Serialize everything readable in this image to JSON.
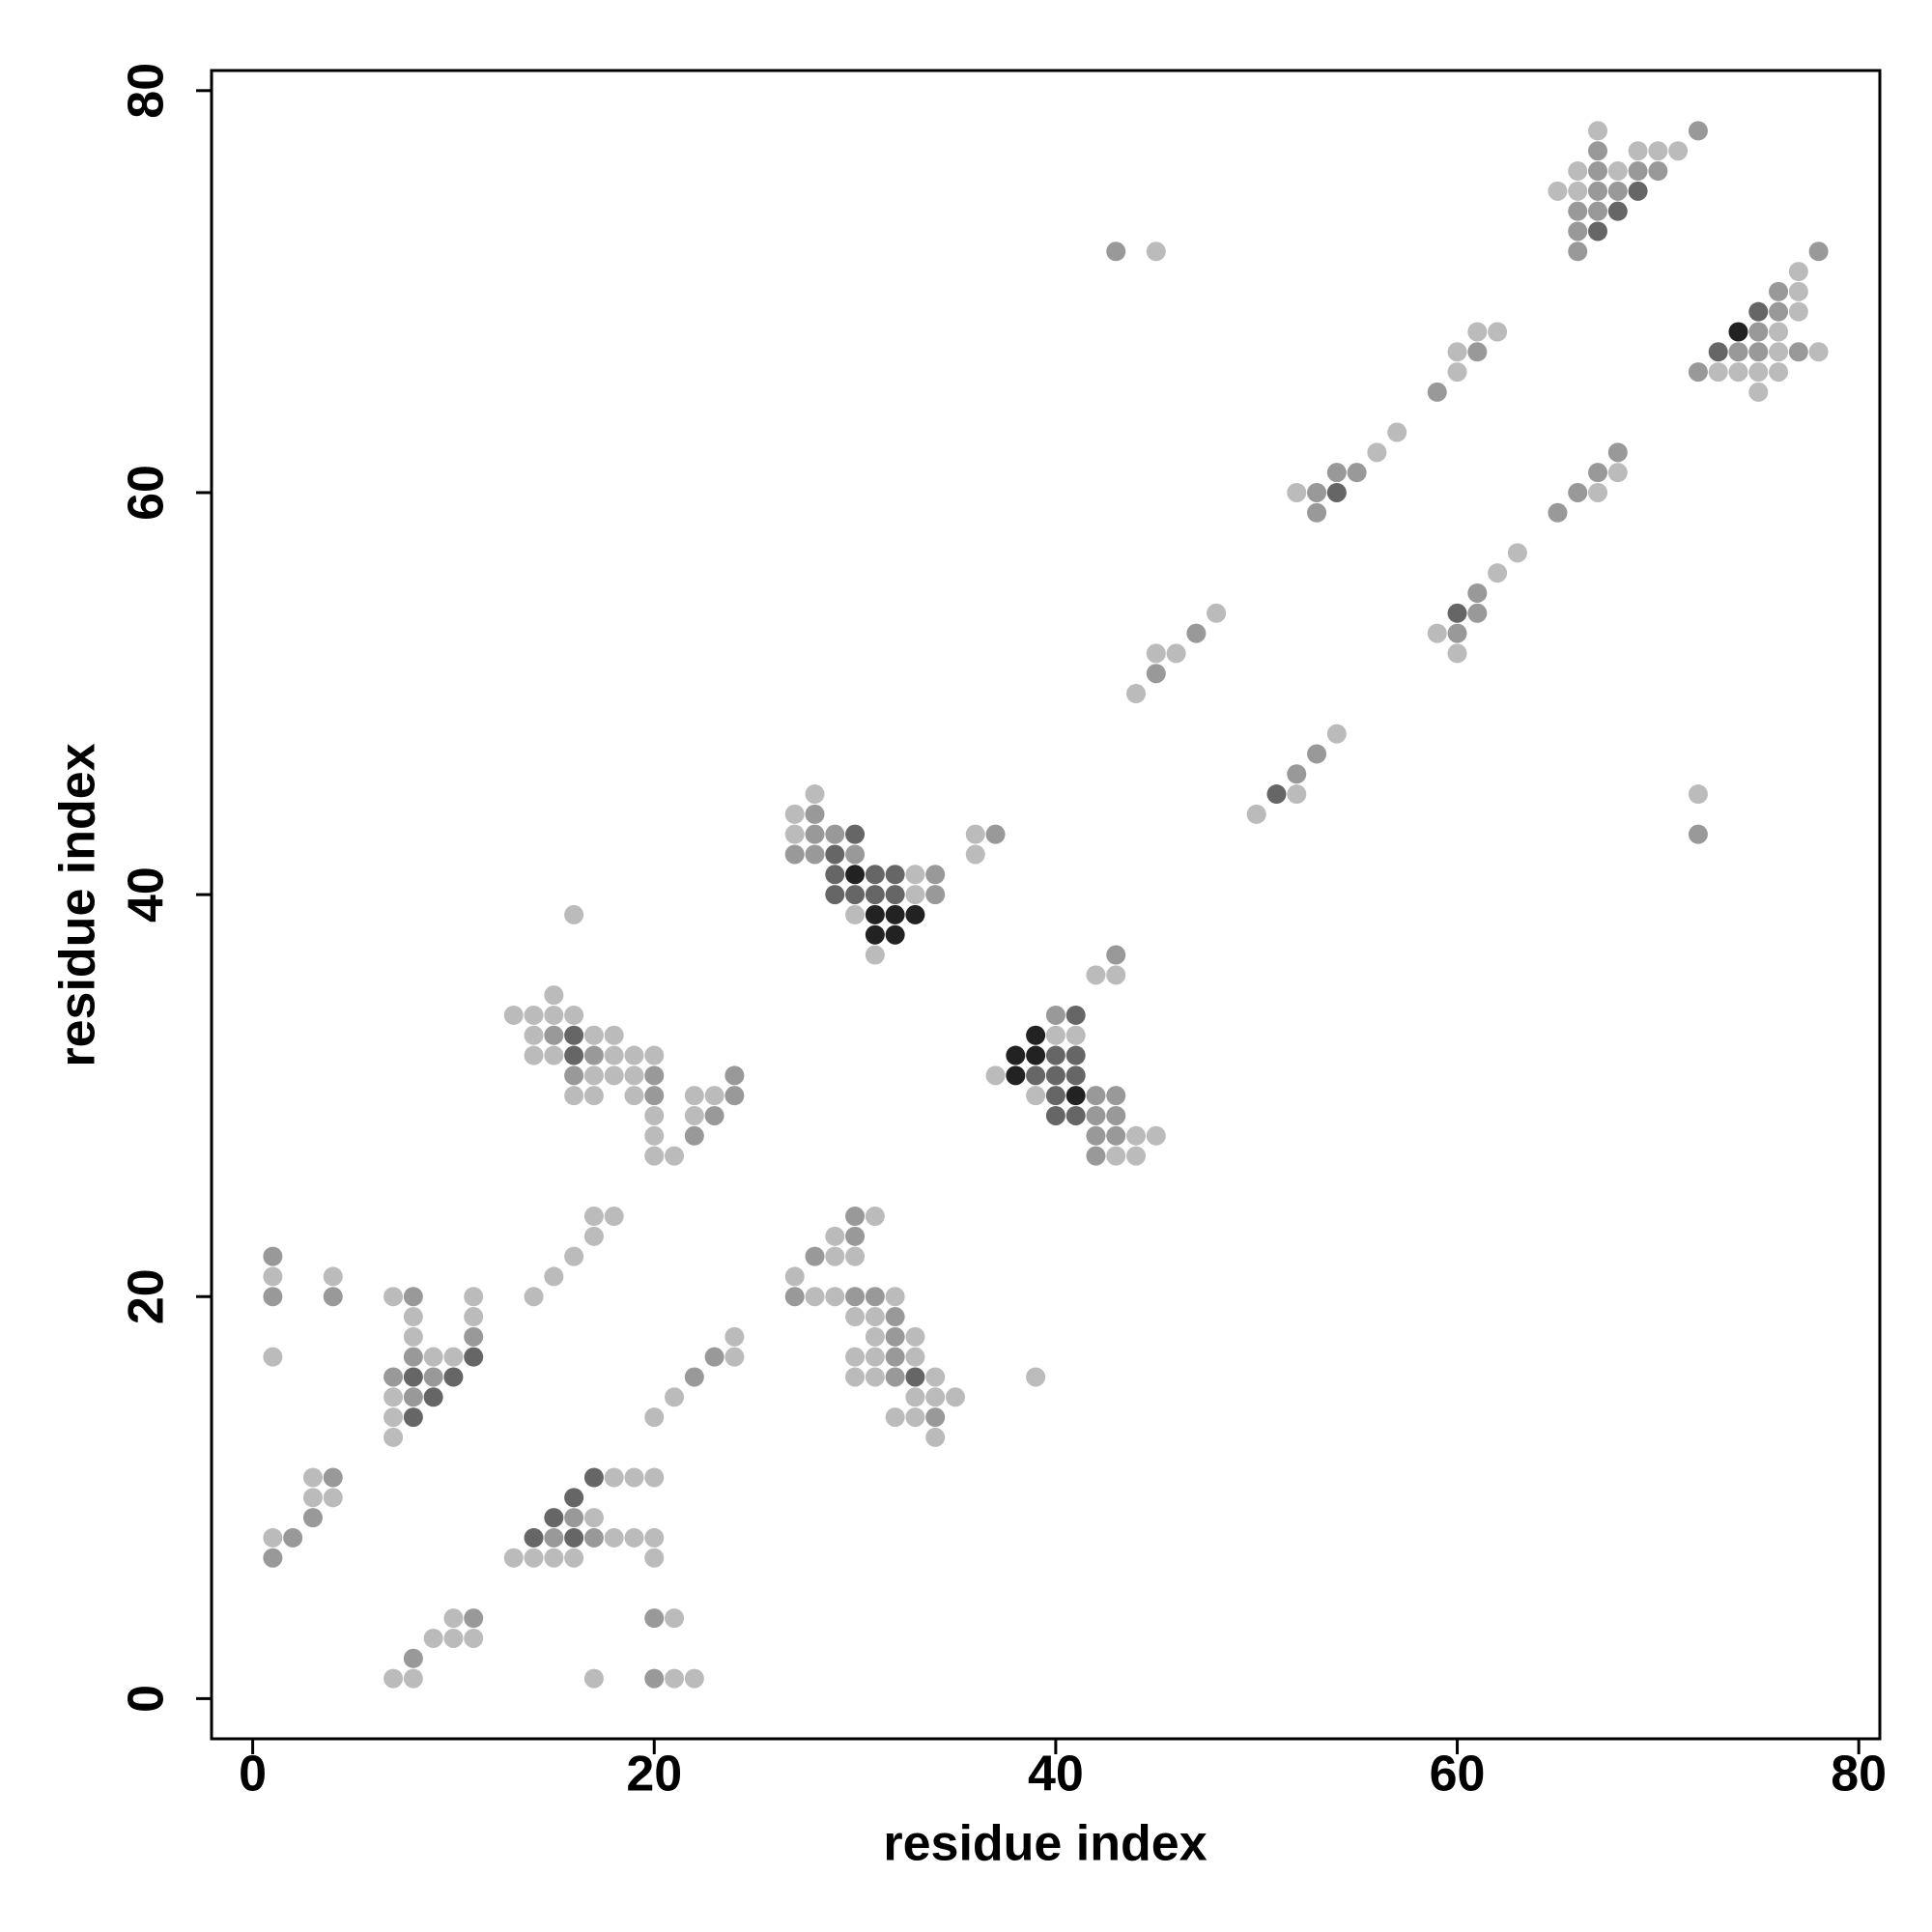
{
  "chart_data": {
    "type": "scatter",
    "xlabel": "residue index",
    "ylabel": "residue index",
    "xlim": [
      -2.05,
      81.05
    ],
    "ylim": [
      -2.0,
      81.0
    ],
    "xticks": [
      0,
      20,
      40,
      60,
      80
    ],
    "yticks": [
      0,
      20,
      40,
      60,
      80
    ],
    "series": [
      {
        "color": "#bbbbbb",
        "x": [
          7,
          8,
          17,
          21,
          22,
          9,
          10,
          11,
          10,
          21,
          13,
          14,
          15,
          16,
          20,
          1,
          18,
          19,
          20,
          17,
          3,
          4,
          3,
          18,
          19,
          20,
          7,
          34,
          7,
          20,
          32,
          33,
          7,
          21,
          33,
          34,
          35,
          30,
          31,
          34,
          39,
          1,
          9,
          10,
          24,
          30,
          31,
          33,
          8,
          24,
          31,
          33,
          8,
          11,
          30,
          31,
          7,
          11,
          14,
          28,
          29,
          32,
          1,
          4,
          15,
          27,
          16,
          29,
          30,
          17,
          29,
          17,
          18,
          31,
          20,
          21,
          43,
          44,
          20,
          44,
          45,
          20,
          22,
          16,
          17,
          19,
          22,
          23,
          39,
          17,
          18,
          19,
          37,
          14,
          15,
          18,
          19,
          20,
          14,
          17,
          18,
          40,
          41,
          13,
          14,
          15,
          16,
          15,
          42,
          43,
          31,
          16,
          30,
          33,
          33,
          36,
          27,
          36,
          27,
          50,
          28,
          52,
          72,
          54,
          44,
          45,
          46,
          60,
          59,
          48,
          62,
          63,
          52,
          67,
          68,
          56,
          57,
          75,
          60,
          73,
          74,
          75,
          76,
          60,
          76,
          78,
          61,
          62,
          76,
          77,
          77,
          77,
          45,
          65,
          66,
          66,
          68,
          69,
          70,
          71,
          67
        ],
        "y": [
          1,
          1,
          1,
          1,
          1,
          3,
          3,
          3,
          4,
          4,
          7,
          7,
          7,
          7,
          7,
          8,
          8,
          8,
          8,
          9,
          10,
          10,
          11,
          11,
          11,
          11,
          13,
          13,
          14,
          14,
          14,
          14,
          15,
          15,
          15,
          15,
          15,
          16,
          16,
          16,
          16,
          17,
          17,
          17,
          17,
          17,
          17,
          17,
          18,
          18,
          18,
          18,
          19,
          19,
          19,
          19,
          20,
          20,
          20,
          20,
          20,
          20,
          21,
          21,
          21,
          21,
          22,
          22,
          22,
          23,
          23,
          24,
          24,
          24,
          27,
          27,
          27,
          27,
          28,
          28,
          28,
          29,
          29,
          30,
          30,
          30,
          30,
          30,
          30,
          31,
          31,
          31,
          31,
          32,
          32,
          32,
          32,
          32,
          33,
          33,
          33,
          33,
          33,
          34,
          34,
          34,
          34,
          35,
          36,
          36,
          37,
          39,
          39,
          40,
          41,
          42,
          43,
          43,
          44,
          44,
          45,
          45,
          45,
          48,
          50,
          52,
          52,
          52,
          53,
          54,
          56,
          57,
          60,
          60,
          61,
          62,
          63,
          65,
          66,
          66,
          66,
          66,
          66,
          67,
          67,
          67,
          68,
          68,
          68,
          69,
          70,
          71,
          72,
          75,
          75,
          76,
          76,
          77,
          77,
          77,
          78
        ]
      },
      {
        "color": "#999999",
        "x": [
          20,
          8,
          11,
          20,
          1,
          2,
          15,
          17,
          3,
          16,
          4,
          34,
          8,
          7,
          9,
          22,
          32,
          8,
          23,
          32,
          11,
          32,
          32,
          1,
          4,
          8,
          27,
          30,
          31,
          1,
          28,
          30,
          30,
          42,
          22,
          42,
          43,
          23,
          42,
          43,
          20,
          24,
          42,
          43,
          16,
          20,
          24,
          17,
          15,
          40,
          43,
          34,
          34,
          27,
          28,
          30,
          28,
          29,
          37,
          72,
          28,
          52,
          53,
          45,
          47,
          60,
          61,
          61,
          53,
          65,
          53,
          66,
          54,
          55,
          67,
          68,
          59,
          72,
          61,
          74,
          75,
          77,
          75,
          76,
          76,
          43,
          66,
          78,
          66,
          66,
          67,
          67,
          68,
          67,
          69,
          70,
          67,
          72
        ],
        "y": [
          1,
          2,
          4,
          4,
          7,
          8,
          8,
          8,
          9,
          9,
          11,
          14,
          15,
          16,
          16,
          16,
          16,
          17,
          17,
          17,
          18,
          18,
          19,
          20,
          20,
          20,
          20,
          20,
          20,
          22,
          22,
          23,
          24,
          27,
          28,
          28,
          28,
          29,
          29,
          29,
          30,
          30,
          30,
          30,
          31,
          31,
          31,
          32,
          33,
          34,
          37,
          40,
          41,
          42,
          42,
          42,
          43,
          43,
          43,
          43,
          44,
          46,
          47,
          51,
          53,
          53,
          54,
          55,
          59,
          59,
          60,
          60,
          61,
          61,
          61,
          62,
          65,
          66,
          67,
          67,
          67,
          67,
          68,
          69,
          70,
          72,
          72,
          72,
          73,
          74,
          74,
          75,
          75,
          76,
          76,
          76,
          77,
          78
        ]
      },
      {
        "color": "#666666",
        "x": [
          14,
          16,
          15,
          16,
          17,
          8,
          9,
          8,
          10,
          33,
          11,
          40,
          41,
          40,
          39,
          40,
          41,
          16,
          40,
          41,
          16,
          41,
          29,
          30,
          31,
          32,
          29,
          31,
          32,
          29,
          30,
          51,
          60,
          54,
          73,
          75,
          67,
          68,
          69
        ],
        "y": [
          8,
          8,
          9,
          10,
          11,
          14,
          15,
          16,
          16,
          16,
          17,
          29,
          29,
          30,
          31,
          31,
          31,
          32,
          32,
          32,
          33,
          34,
          40,
          40,
          40,
          40,
          41,
          41,
          41,
          42,
          43,
          45,
          54,
          60,
          67,
          69,
          73,
          74,
          75
        ]
      },
      {
        "color": "#222222",
        "x": [
          41,
          38,
          38,
          39,
          39,
          31,
          32,
          31,
          32,
          33,
          30,
          74
        ],
        "y": [
          30,
          31,
          32,
          32,
          33,
          38,
          38,
          39,
          39,
          39,
          41,
          68
        ]
      }
    ]
  }
}
